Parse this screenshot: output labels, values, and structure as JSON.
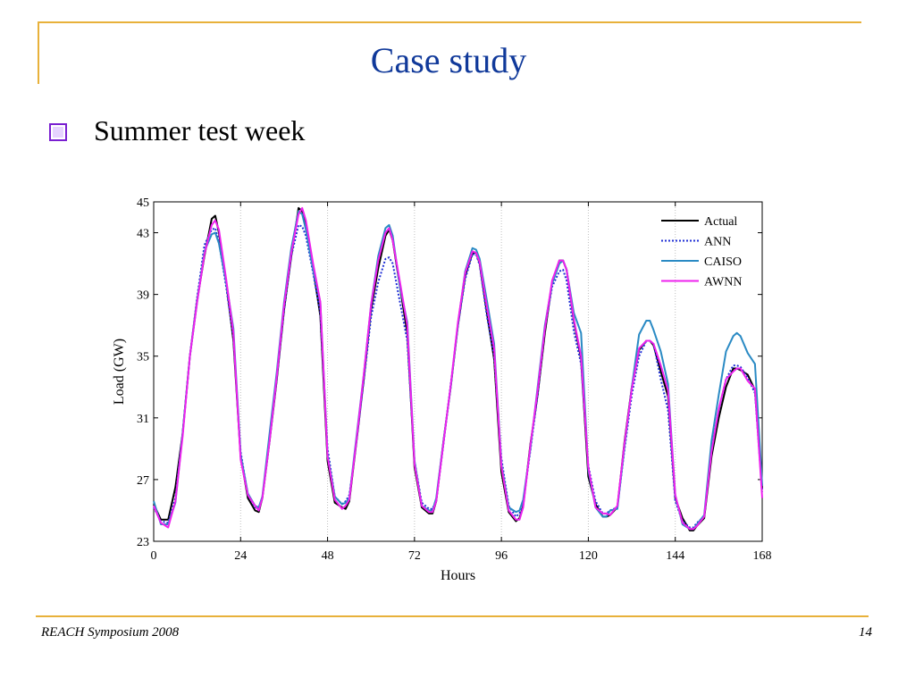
{
  "slide": {
    "title": "Case study",
    "bullet": "Summer test week",
    "footer_left": "REACH Symposium 2008",
    "footer_right": "14",
    "accent_color": "#e8b13a",
    "title_color": "#10399a",
    "bullet_color": "#7a1fd1"
  },
  "chart_data": {
    "type": "line",
    "title": "",
    "xlabel": "Hours",
    "ylabel": "Load (GW)",
    "xlim": [
      0,
      168
    ],
    "ylim": [
      23,
      45
    ],
    "xticks": [
      0,
      24,
      48,
      72,
      96,
      120,
      144,
      168
    ],
    "yticks": [
      23,
      27,
      31,
      35,
      39,
      43,
      45
    ],
    "grid": "vertical dotted lines at day boundaries",
    "legend_position": "top-right",
    "x": [
      0,
      2,
      4,
      6,
      8,
      10,
      12,
      14,
      16,
      17,
      18,
      20,
      22,
      24,
      26,
      28,
      29,
      30,
      32,
      34,
      36,
      38,
      40,
      41,
      42,
      44,
      46,
      48,
      50,
      52,
      53,
      54,
      56,
      58,
      60,
      62,
      64,
      65,
      66,
      68,
      70,
      72,
      74,
      76,
      77,
      78,
      80,
      82,
      84,
      86,
      88,
      89,
      90,
      92,
      94,
      96,
      98,
      100,
      101,
      102,
      104,
      106,
      108,
      110,
      112,
      113,
      114,
      116,
      118,
      120,
      122,
      124,
      125,
      126,
      128,
      130,
      132,
      134,
      136,
      137,
      138,
      140,
      142,
      144,
      146,
      148,
      149,
      150,
      152,
      154,
      156,
      158,
      160,
      161,
      162,
      164,
      166,
      168
    ],
    "series": [
      {
        "name": "Actual",
        "color": "#000000",
        "style": "solid",
        "values": [
          25.4,
          24.4,
          24.4,
          26.5,
          30,
          35,
          38.6,
          41.5,
          43.9,
          44.1,
          43,
          39.8,
          36,
          28.5,
          25.8,
          25,
          24.9,
          25.8,
          29.5,
          33.5,
          38,
          41.5,
          44.6,
          44.4,
          43.5,
          40.7,
          37.6,
          28.2,
          25.5,
          25.2,
          25.1,
          25.6,
          29.5,
          33.5,
          38,
          40.7,
          42.8,
          43.2,
          42.5,
          39.5,
          36.5,
          27.8,
          25.2,
          24.8,
          24.8,
          25.6,
          29.5,
          33,
          37,
          40.2,
          41.7,
          41.7,
          41,
          37.8,
          34.8,
          27.5,
          24.9,
          24.3,
          24.5,
          25.3,
          29.3,
          32.5,
          36.5,
          39.8,
          41.2,
          41.2,
          40.6,
          37.3,
          34.8,
          27.2,
          25.4,
          24.6,
          24.6,
          24.7,
          25.2,
          29.5,
          33,
          35.4,
          36,
          36,
          35.7,
          34,
          32.4,
          25.8,
          24.5,
          23.7,
          23.7,
          24,
          24.5,
          28.5,
          31,
          33,
          34.2,
          34.2,
          34.1,
          33.8,
          32.8,
          26.4
        ]
      },
      {
        "name": "ANN",
        "color": "#1f2fd6",
        "style": "dotted",
        "values": [
          25.2,
          24.3,
          24.2,
          25.8,
          30,
          35,
          38.8,
          42.2,
          43.2,
          43.3,
          42.4,
          39.5,
          36.2,
          28.8,
          26,
          25.2,
          25.1,
          25.8,
          29.5,
          33.6,
          38,
          41.5,
          43.5,
          43.4,
          42.8,
          40.4,
          37.8,
          29,
          25.9,
          25.4,
          25.6,
          26,
          29.5,
          33.4,
          37.5,
          39.8,
          41.3,
          41.4,
          41,
          38.5,
          36,
          28.2,
          25.5,
          25.1,
          25.1,
          25.7,
          29.3,
          33.2,
          37,
          40,
          41.6,
          41.6,
          40.9,
          37.6,
          35,
          28.4,
          25.3,
          24.6,
          24.8,
          25.5,
          28.9,
          32.5,
          36.8,
          39.5,
          40.5,
          40.6,
          39.9,
          36.6,
          34.5,
          27.9,
          25.6,
          24.8,
          24.8,
          25,
          25.2,
          29,
          32.5,
          35,
          36,
          36,
          35.8,
          33.5,
          31.5,
          25.6,
          24.3,
          23.9,
          23.9,
          24.2,
          24.6,
          29,
          31.5,
          33.5,
          34.4,
          34.4,
          34.3,
          33.6,
          32.6,
          26.2
        ]
      },
      {
        "name": "CAISO",
        "color": "#2a8ac4",
        "style": "solid",
        "values": [
          25.6,
          24.1,
          24.1,
          25.5,
          30,
          35,
          38.5,
          41.8,
          42.9,
          43,
          42.3,
          39.8,
          36.8,
          28.6,
          26.1,
          25.3,
          25.2,
          25.9,
          30,
          34,
          38.5,
          42,
          44.4,
          44.2,
          43.2,
          40.6,
          38.5,
          28.6,
          25.9,
          25.4,
          25.5,
          25.8,
          29.8,
          33.8,
          38.3,
          41.5,
          43.3,
          43.5,
          42.8,
          39.5,
          37.2,
          28.2,
          25.3,
          25,
          25,
          25.8,
          29.5,
          33,
          37.1,
          40.5,
          42,
          41.9,
          41.3,
          38.6,
          35.8,
          28,
          25.2,
          24.9,
          25,
          25.7,
          29,
          33,
          37,
          39.7,
          41,
          41.2,
          40.6,
          37.8,
          36.5,
          27.6,
          25.2,
          24.6,
          24.6,
          25,
          25.1,
          29.2,
          33,
          36.4,
          37.3,
          37.3,
          36.7,
          35.3,
          33.2,
          26,
          24.1,
          23.8,
          23.8,
          24.1,
          24.7,
          29.5,
          32.5,
          35.3,
          36.3,
          36.5,
          36.3,
          35.2,
          34.5,
          26.6
        ]
      },
      {
        "name": "AWNN",
        "color": "#ee22ee",
        "style": "solid",
        "values": [
          25.3,
          24.2,
          23.9,
          25.6,
          29.8,
          35,
          38.5,
          41.6,
          43.5,
          43.8,
          43.2,
          40,
          36.5,
          28.3,
          26,
          25.3,
          25,
          25.8,
          29.5,
          33.7,
          38.3,
          41.7,
          44.2,
          44.6,
          43.8,
          41,
          38.5,
          28.5,
          25.7,
          25.1,
          25.3,
          25.7,
          29.6,
          33.8,
          38.3,
          41.2,
          43,
          43.3,
          42.5,
          39.8,
          37,
          28,
          25.3,
          24.9,
          24.9,
          25.6,
          29.4,
          33.1,
          37.2,
          40.4,
          41.8,
          41.7,
          41.1,
          38.2,
          35.5,
          27.9,
          25,
          24.4,
          24.4,
          25.2,
          29.2,
          32.8,
          36.8,
          39.9,
          41.2,
          41.2,
          40.6,
          37.4,
          35,
          27.8,
          25.2,
          24.8,
          24.8,
          24.7,
          25.3,
          29.4,
          32.9,
          35.5,
          36,
          36,
          35.8,
          34.4,
          32.8,
          26,
          24.2,
          23.8,
          23.8,
          24,
          24.6,
          28.8,
          31.6,
          33.5,
          34,
          34.2,
          34.2,
          33.4,
          32.9,
          25.8
        ]
      }
    ]
  }
}
